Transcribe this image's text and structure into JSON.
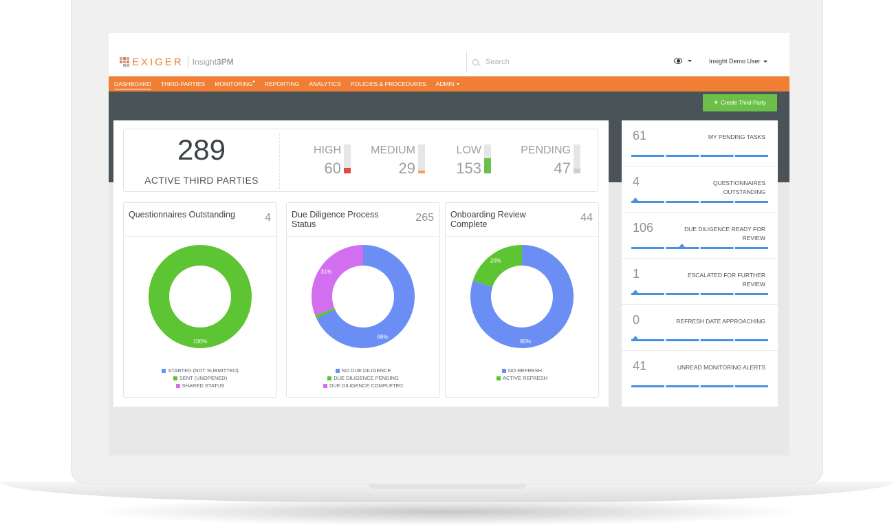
{
  "brand": {
    "name": "EXIGER",
    "product": "Insight",
    "product_bold": "3PM"
  },
  "search": {
    "placeholder": "Search"
  },
  "user": {
    "name": "Insight Demo User"
  },
  "nav": {
    "items": [
      {
        "label": "DASHBOARD",
        "active": true
      },
      {
        "label": "THIRD-PARTIES"
      },
      {
        "label": "MONITORING",
        "badge": "●"
      },
      {
        "label": "REPORTING"
      },
      {
        "label": "ANALYTICS"
      },
      {
        "label": "POLICIES & PROCEDURES"
      },
      {
        "label": "ADMIN",
        "dropdown": true
      }
    ]
  },
  "actions": {
    "create_label": "Create Third-Party"
  },
  "summary": {
    "active_count": "289",
    "active_label": "ACTIVE THIRD PARTIES",
    "risks": [
      {
        "label": "HIGH",
        "value": "60",
        "color": "#e04b3f",
        "fill": 0.2
      },
      {
        "label": "MEDIUM",
        "value": "29",
        "color": "#f0a060",
        "fill": 0.1
      },
      {
        "label": "LOW",
        "value": "153",
        "color": "#6cc04a",
        "fill": 0.53
      },
      {
        "label": "PENDING",
        "value": "47",
        "color": "#cfcfcf",
        "fill": 0.16
      }
    ]
  },
  "cards": [
    {
      "title": "Questionnaires Outstanding",
      "count": "4",
      "slices": [
        {
          "label": "STARTED (NOT SUBMITTED)",
          "value": 0,
          "color": "#6b8ef5",
          "pct_label": ""
        },
        {
          "label": "SENT (UNOPENED)",
          "value": 100,
          "color": "#5dc433",
          "pct_label": "100%"
        },
        {
          "label": "SHARED STATUS",
          "value": 0,
          "color": "#d26ef0",
          "pct_label": ""
        }
      ]
    },
    {
      "title": "Due Diligence Process Status",
      "count": "265",
      "slices": [
        {
          "label": "NO DUE DILIGENCE",
          "value": 68,
          "color": "#6b8ef5",
          "pct_label": "68%"
        },
        {
          "label": "DUE DILIGENCE PENDING",
          "value": 1,
          "color": "#5dc433",
          "pct_label": ""
        },
        {
          "label": "DUE DILIGENCE COMPLETED",
          "value": 31,
          "color": "#d26ef0",
          "pct_label": "31%"
        }
      ]
    },
    {
      "title": "Onboarding Review Complete",
      "count": "44",
      "slices": [
        {
          "label": "NO REFRESH",
          "value": 80,
          "color": "#6b8ef5",
          "pct_label": "80%"
        },
        {
          "label": "ACTIVE REFRESH",
          "value": 20,
          "color": "#5dc433",
          "pct_label": "20%"
        }
      ]
    }
  ],
  "tasks": [
    {
      "count": "61",
      "label": "MY PENDING TASKS",
      "spike": null
    },
    {
      "count": "4",
      "label": "QUESTIONNAIRES OUTSTANDING",
      "spike": 0.03
    },
    {
      "count": "106",
      "label": "DUE DILIGENCE READY FOR REVIEW",
      "spike": 0.37
    },
    {
      "count": "1",
      "label": "ESCALATED FOR FURTHER REVIEW",
      "spike": 0.03
    },
    {
      "count": "0",
      "label": "REFRESH DATE APPROACHING",
      "spike": 0.03
    },
    {
      "count": "41",
      "label": "UNREAD MONITORING ALERTS",
      "spike": null
    }
  ],
  "colors": {
    "accent": "#f07e35",
    "header_dark": "#4a5357",
    "spark": "#4a90e2",
    "button": "#6cc04a"
  }
}
